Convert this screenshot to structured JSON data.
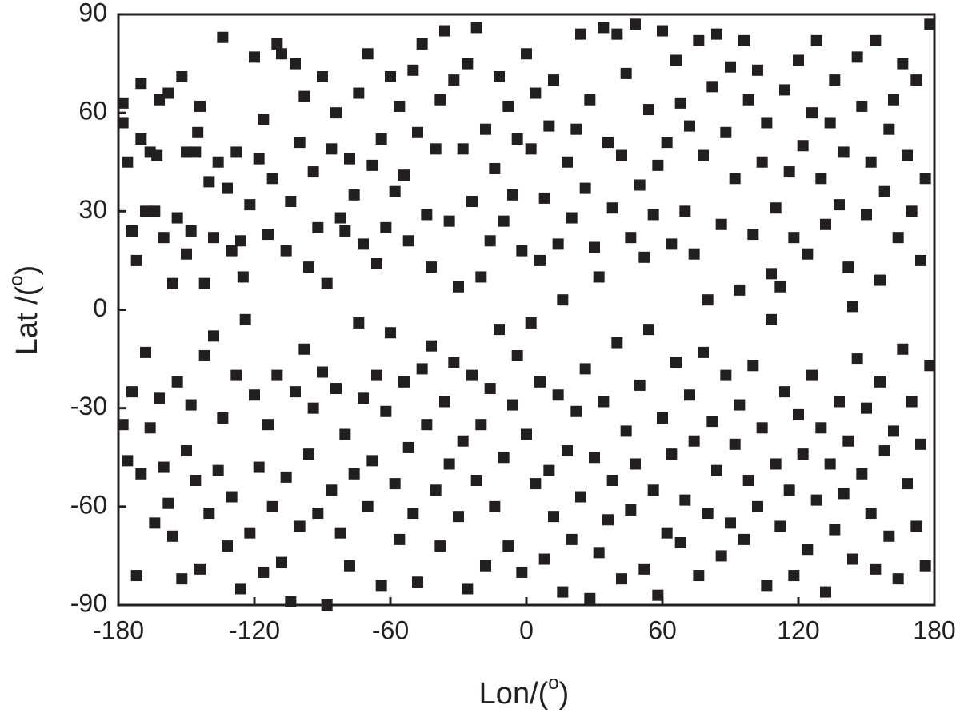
{
  "chart_data": {
    "type": "scatter",
    "color": "#231f20",
    "xlabel": [
      "Lon/(",
      "o",
      ")"
    ],
    "ylabel": [
      "Lat /(",
      "o",
      ")"
    ],
    "xlim": [
      -180,
      180
    ],
    "ylim": [
      -90,
      90
    ],
    "xticks": [
      -180,
      -120,
      -60,
      0,
      60,
      120,
      180
    ],
    "yticks": [
      -90,
      -60,
      -30,
      0,
      30,
      60,
      90
    ],
    "x": [
      -178,
      -178,
      -176,
      -174,
      -172,
      -170,
      -170,
      -168,
      -166,
      -164,
      -163,
      -162,
      -160,
      -158,
      -156,
      -154,
      -152,
      -150,
      -150,
      -148,
      -146,
      -145,
      -144,
      -142,
      -140,
      -138,
      -136,
      -134,
      -132,
      -130,
      -128,
      -126,
      -125,
      -122,
      -120,
      -118,
      -116,
      -114,
      -112,
      -110,
      -108,
      -106,
      -104,
      -102,
      -100,
      -98,
      -96,
      -94,
      -92,
      -90,
      -88,
      -86,
      -84,
      -82,
      -80,
      -78,
      -76,
      -74,
      -72,
      -70,
      -68,
      -66,
      -64,
      -62,
      -60,
      -58,
      -56,
      -54,
      -52,
      -50,
      -48,
      -46,
      -44,
      -42,
      -40,
      -38,
      -36,
      -34,
      -32,
      -30,
      -28,
      -26,
      -24,
      -22,
      -20,
      -18,
      -16,
      -14,
      -12,
      -10,
      -8,
      -6,
      -4,
      -2,
      0,
      2,
      4,
      6,
      8,
      10,
      12,
      14,
      16,
      18,
      20,
      22,
      24,
      26,
      28,
      30,
      32,
      34,
      36,
      38,
      40,
      42,
      44,
      46,
      48,
      50,
      52,
      54,
      56,
      58,
      60,
      62,
      64,
      66,
      68,
      70,
      72,
      74,
      76,
      78,
      80,
      82,
      84,
      86,
      88,
      90,
      92,
      94,
      96,
      98,
      100,
      102,
      104,
      106,
      108,
      110,
      112,
      114,
      116,
      118,
      120,
      122,
      124,
      126,
      128,
      130,
      132,
      134,
      136,
      138,
      140,
      142,
      144,
      146,
      148,
      150,
      152,
      154,
      156,
      158,
      160,
      162,
      164,
      166,
      168,
      170,
      172,
      174,
      176,
      178,
      -178,
      -176,
      -174,
      -172,
      -170,
      -168,
      -166,
      -164,
      -162,
      -160,
      -158,
      -156,
      -154,
      -152,
      -150,
      -148,
      -146,
      -144,
      -142,
      -140,
      -138,
      -136,
      -134,
      -132,
      -130,
      -128,
      -126,
      -124,
      -122,
      -120,
      -118,
      -116,
      -114,
      -112,
      -110,
      -108,
      -106,
      -104,
      -102,
      -100,
      -98,
      -96,
      -94,
      -92,
      -90,
      -88,
      -86,
      -84,
      -82,
      -80,
      -78,
      -76,
      -74,
      -72,
      -70,
      -68,
      -66,
      -64,
      -62,
      -60,
      -58,
      -56,
      -54,
      -52,
      -50,
      -48,
      -46,
      -44,
      -42,
      -40,
      -38,
      -36,
      -34,
      -32,
      -30,
      -28,
      -26,
      -24,
      -22,
      -20,
      -18,
      -16,
      -14,
      -12,
      -10,
      -8,
      -6,
      -4,
      -2,
      0,
      2,
      4,
      6,
      8,
      10,
      12,
      14,
      16,
      18,
      20,
      22,
      24,
      26,
      28,
      30,
      32,
      34,
      36,
      38,
      40,
      42,
      44,
      46,
      48,
      50,
      52,
      54,
      56,
      58,
      60,
      62,
      64,
      66,
      68,
      70,
      72,
      74,
      76,
      78,
      80,
      82,
      84,
      86,
      88,
      90,
      92,
      94,
      96,
      98,
      100,
      102,
      104,
      106,
      108,
      110,
      112,
      114,
      116,
      118,
      120,
      122,
      124,
      126,
      128,
      130,
      132,
      134,
      136,
      138,
      140,
      142,
      144,
      146,
      148,
      150,
      152,
      154,
      156,
      158,
      160,
      162,
      164,
      166,
      168,
      170,
      172,
      174,
      176,
      178
    ],
    "values": [
      63,
      57,
      45,
      24,
      15,
      69,
      52,
      30,
      48,
      30,
      47,
      64,
      22,
      66,
      8,
      28,
      71,
      48,
      17,
      24,
      48,
      54,
      62,
      8,
      39,
      22,
      45,
      83,
      37,
      18,
      48,
      21,
      10,
      32,
      77,
      46,
      58,
      23,
      40,
      81,
      78,
      18,
      33,
      75,
      51,
      65,
      13,
      42,
      25,
      71,
      8,
      49,
      60,
      28,
      24,
      46,
      35,
      66,
      20,
      78,
      44,
      14,
      52,
      25,
      71,
      36,
      62,
      41,
      21,
      73,
      54,
      81,
      29,
      13,
      49,
      64,
      85,
      27,
      70,
      7,
      49,
      75,
      33,
      86,
      10,
      55,
      21,
      43,
      71,
      27,
      62,
      35,
      52,
      18,
      78,
      49,
      66,
      15,
      34,
      56,
      70,
      20,
      3,
      45,
      28,
      55,
      84,
      37,
      64,
      19,
      10,
      86,
      51,
      31,
      84,
      47,
      72,
      22,
      87,
      38,
      16,
      61,
      29,
      44,
      85,
      51,
      20,
      76,
      63,
      30,
      56,
      17,
      82,
      47,
      3,
      68,
      84,
      26,
      54,
      74,
      40,
      6,
      82,
      64,
      23,
      73,
      45,
      57,
      11,
      31,
      7,
      67,
      42,
      22,
      76,
      50,
      17,
      60,
      82,
      40,
      26,
      57,
      70,
      32,
      48,
      13,
      1,
      77,
      62,
      29,
      45,
      82,
      9,
      36,
      55,
      64,
      22,
      75,
      47,
      30,
      70,
      15,
      40,
      87,
      -35,
      -46,
      -25,
      -81,
      -50,
      -13,
      -36,
      -65,
      -27,
      -48,
      -59,
      -69,
      -22,
      -82,
      -43,
      -29,
      -52,
      -79,
      -14,
      -62,
      -8,
      -49,
      -33,
      -72,
      -57,
      -20,
      -85,
      -3,
      -68,
      -26,
      -48,
      -80,
      -35,
      -60,
      -20,
      -77,
      -51,
      -89,
      -25,
      -66,
      -12,
      -44,
      -30,
      -62,
      -19,
      -90,
      -55,
      -24,
      -68,
      -38,
      -78,
      -50,
      -4,
      -27,
      -60,
      -46,
      -20,
      -84,
      -31,
      -7,
      -53,
      -70,
      -22,
      -42,
      -62,
      -83,
      -18,
      -35,
      -11,
      -55,
      -72,
      -28,
      -47,
      -16,
      -63,
      -40,
      -85,
      -20,
      -52,
      -35,
      -78,
      -24,
      -60,
      -6,
      -45,
      -72,
      -29,
      -14,
      -80,
      -38,
      -4,
      -53,
      -22,
      -76,
      -49,
      -63,
      -26,
      -86,
      -43,
      -70,
      -31,
      -57,
      -18,
      -88,
      -45,
      -74,
      -28,
      -64,
      -52,
      -10,
      -82,
      -37,
      -61,
      -47,
      -23,
      -79,
      -6,
      -55,
      -87,
      -33,
      -68,
      -44,
      -16,
      -71,
      -58,
      -26,
      -40,
      -81,
      -13,
      -62,
      -34,
      -49,
      -75,
      -20,
      -65,
      -41,
      -29,
      -70,
      -52,
      -17,
      -60,
      -36,
      -84,
      -3,
      -47,
      -66,
      -25,
      -55,
      -81,
      -32,
      -44,
      -73,
      -20,
      -58,
      -36,
      -86,
      -47,
      -67,
      -28,
      -56,
      -40,
      -76,
      -15,
      -50,
      -30,
      -62,
      -79,
      -22,
      -43,
      -69,
      -37,
      -82,
      -12,
      -53,
      -28,
      -66,
      -41,
      -78,
      -17
    ]
  }
}
